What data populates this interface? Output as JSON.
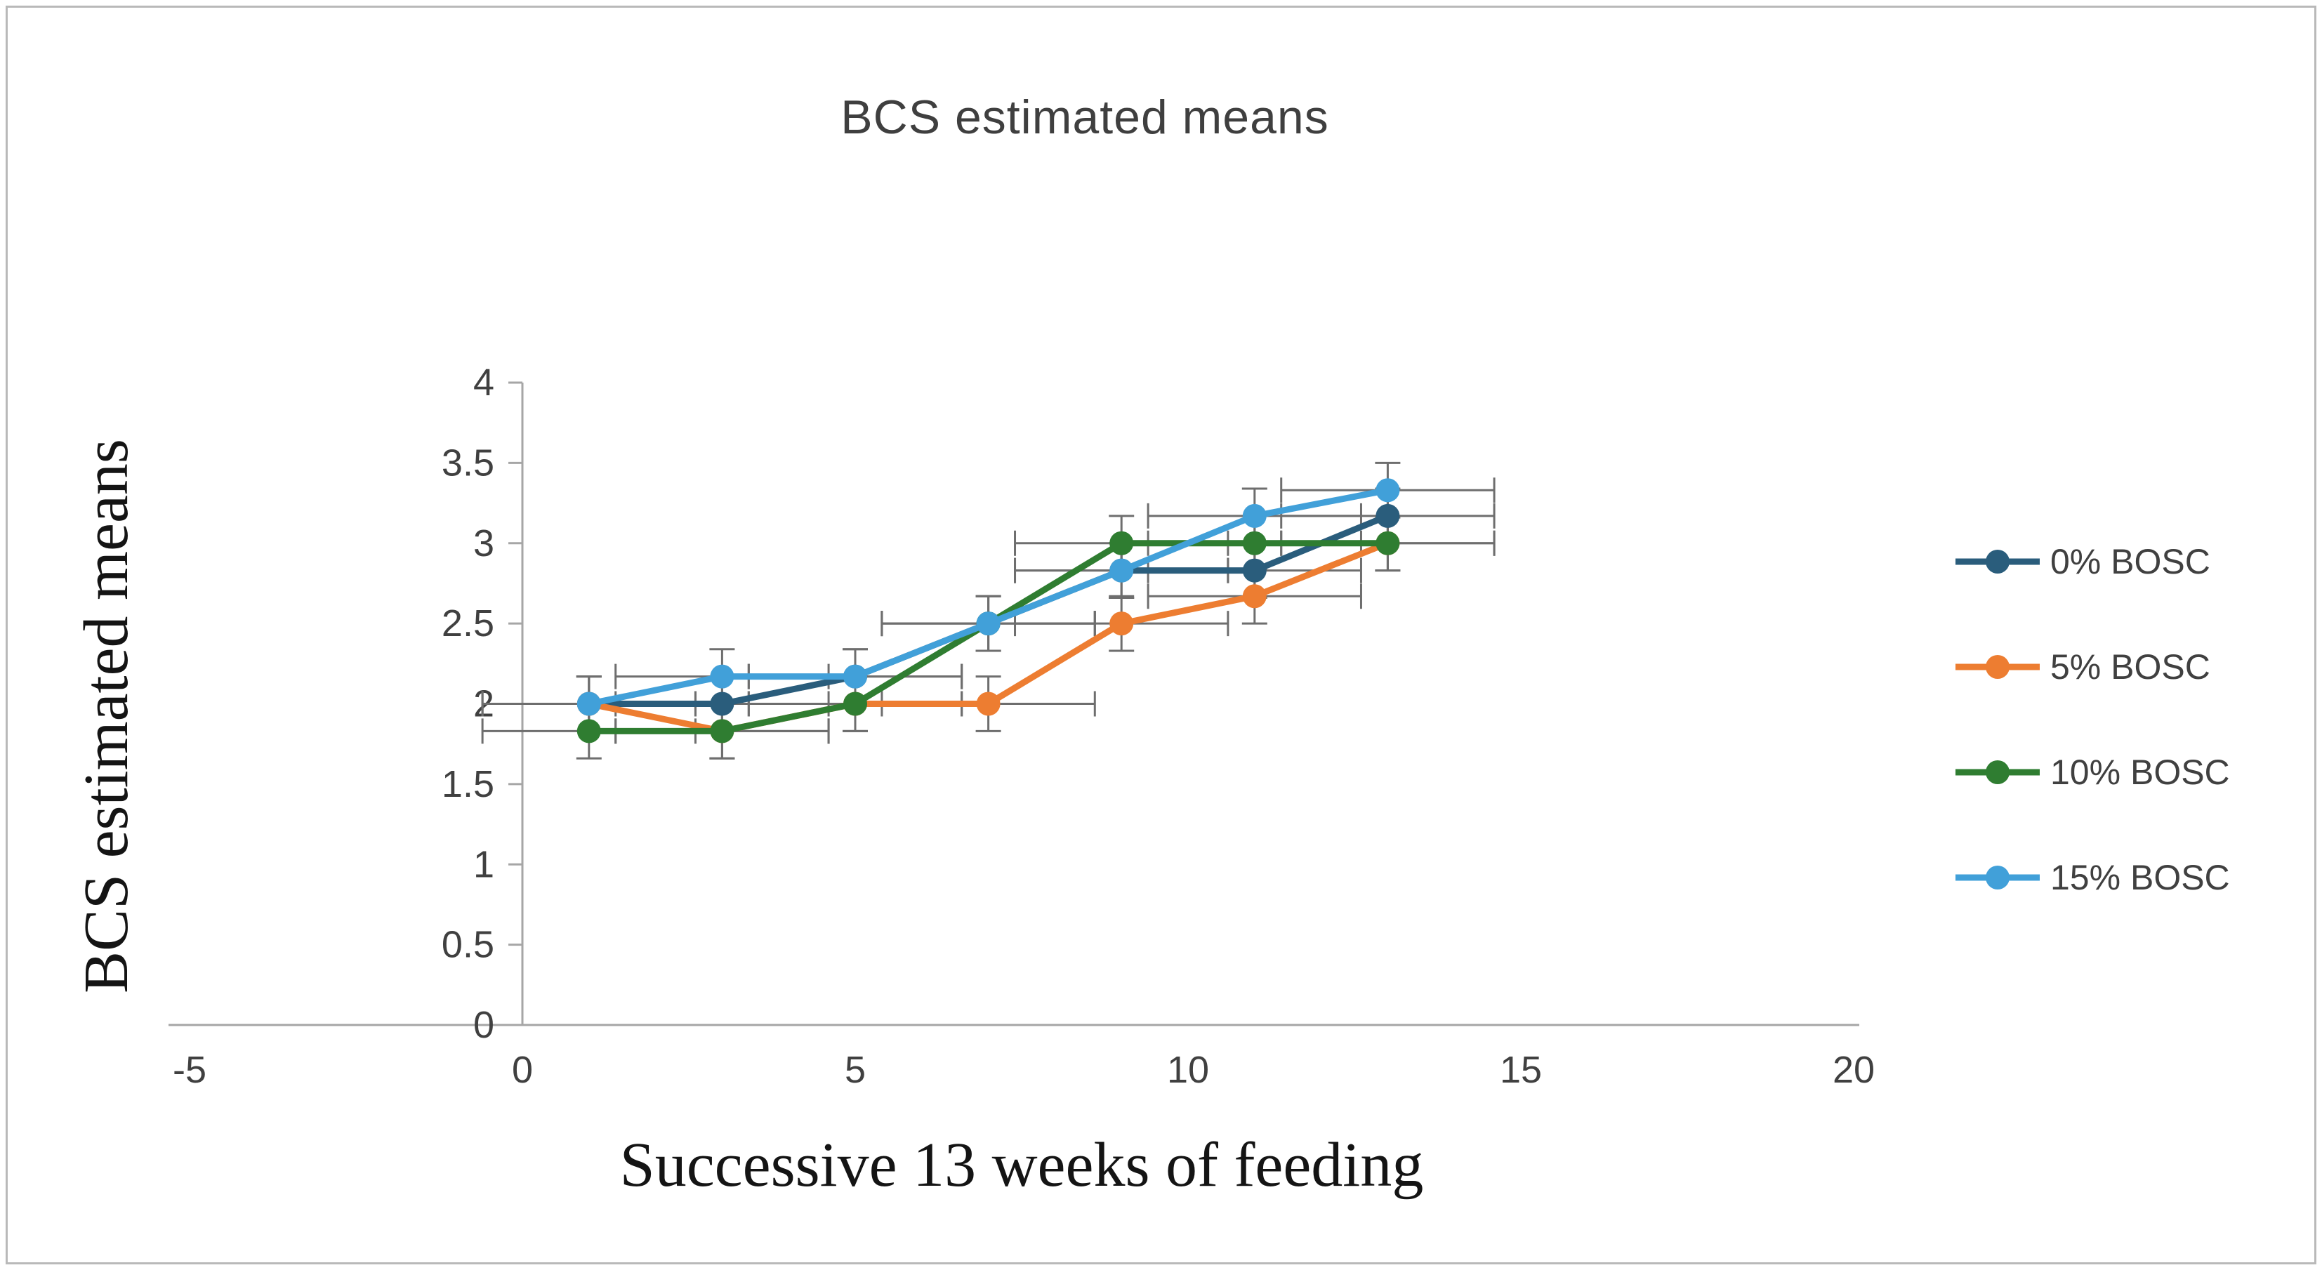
{
  "chart_data": {
    "type": "line",
    "title": "BCS estimated means",
    "xlabel": "Successive 13 weeks of feeding",
    "ylabel": "BCS estimated means",
    "x": [
      1,
      3,
      5,
      7,
      9,
      11,
      13
    ],
    "xlim": [
      -5,
      20
    ],
    "ylim": [
      0,
      4
    ],
    "xticks": [
      -5,
      0,
      5,
      10,
      15,
      20
    ],
    "yticks": [
      0,
      0.5,
      1,
      1.5,
      2,
      2.5,
      3,
      3.5,
      4
    ],
    "xerr": 1.6,
    "yerr": 0.17,
    "series": [
      {
        "name": "0% BOSC",
        "color": "#2a5d7c",
        "values": [
          2.0,
          2.0,
          2.17,
          2.5,
          2.83,
          2.83,
          3.17
        ]
      },
      {
        "name": "5% BOSC",
        "color": "#ed7d31",
        "values": [
          2.0,
          1.83,
          2.0,
          2.0,
          2.5,
          2.67,
          3.0
        ]
      },
      {
        "name": "10% BOSC",
        "color": "#2f7d31",
        "values": [
          1.83,
          1.83,
          2.0,
          2.5,
          3.0,
          3.0,
          3.0
        ]
      },
      {
        "name": "15% BOSC",
        "color": "#41a0d9",
        "values": [
          2.0,
          2.17,
          2.17,
          2.5,
          2.83,
          3.17,
          3.33
        ]
      }
    ],
    "legend_position": "right",
    "grid": false,
    "axis_color": "#a6a6a6",
    "tick_color": "#404040",
    "error_color": "#6e6e6e"
  }
}
